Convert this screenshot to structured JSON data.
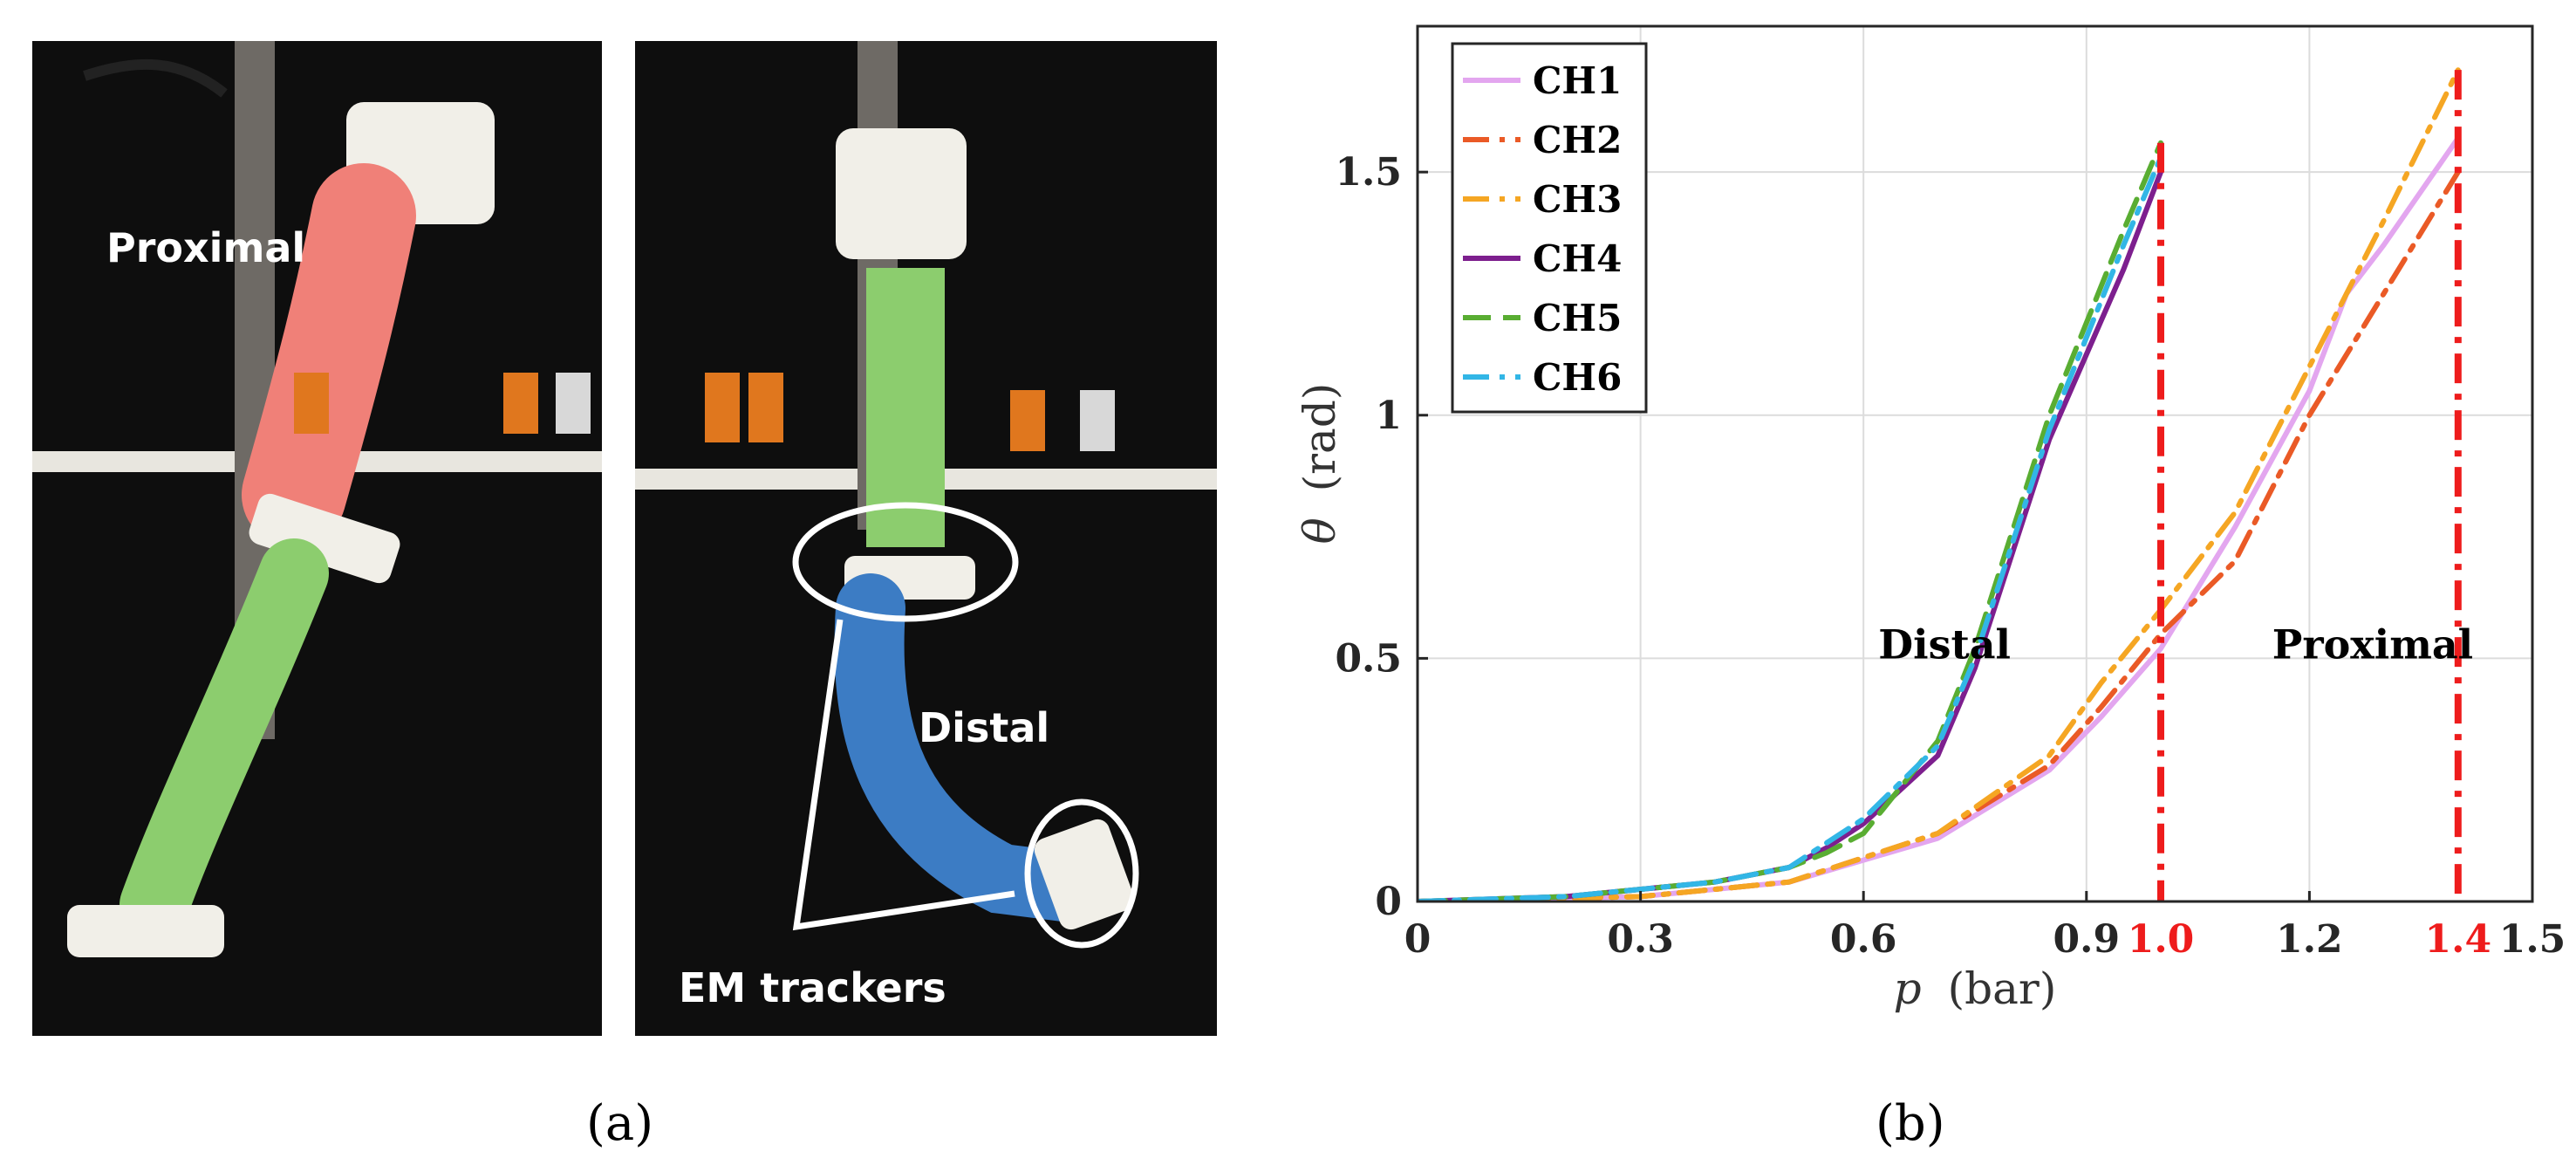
{
  "panel_a": {
    "label": "(a)",
    "left_photo": {
      "label_proximal": "Proximal"
    },
    "right_photo": {
      "label_distal": "Distal",
      "label_trackers": "EM trackers"
    }
  },
  "panel_b": {
    "label": "(b)"
  },
  "chart_data": {
    "type": "line",
    "xlabel_var": "p",
    "xlabel_unit": "(bar)",
    "ylabel_var": "θ",
    "ylabel_unit": "(rad)",
    "xlim": [
      0,
      1.5
    ],
    "ylim": [
      0,
      1.8
    ],
    "xticks": [
      "0",
      "0.3",
      "0.6",
      "0.9",
      "1.2",
      "1.5"
    ],
    "xticks_values": [
      0,
      0.3,
      0.6,
      0.9,
      1.2,
      1.5
    ],
    "yticks": [
      "0",
      "0.5",
      "1",
      "1.5"
    ],
    "yticks_values": [
      0,
      0.5,
      1,
      1.5
    ],
    "grid": true,
    "legend_position": "top-left",
    "annotations": [
      {
        "text": "Distal",
        "x": 0.62,
        "y": 0.5
      },
      {
        "text": "Proximal",
        "x": 1.15,
        "y": 0.5
      }
    ],
    "vlines": [
      {
        "x": 1.0,
        "label": "1.0",
        "color": "#ee1c1c",
        "y_top": 1.56
      },
      {
        "x": 1.4,
        "label": "1.4",
        "color": "#ee1c1c",
        "y_top": 1.71
      }
    ],
    "series": [
      {
        "name": "CH1",
        "color": "#e3a6ef",
        "dash": "solid",
        "x": [
          0,
          0.3,
          0.5,
          0.7,
          0.85,
          0.92,
          1.0,
          1.1,
          1.2,
          1.25,
          1.3,
          1.4
        ],
        "y": [
          0,
          0.01,
          0.04,
          0.13,
          0.27,
          0.38,
          0.52,
          0.77,
          1.05,
          1.25,
          1.35,
          1.57
        ]
      },
      {
        "name": "CH2",
        "color": "#ea5a26",
        "dash": "dashdot",
        "x": [
          0,
          0.3,
          0.5,
          0.7,
          0.85,
          0.92,
          1.0,
          1.1,
          1.2,
          1.3,
          1.4
        ],
        "y": [
          0,
          0.01,
          0.04,
          0.14,
          0.28,
          0.4,
          0.55,
          0.7,
          1.0,
          1.25,
          1.5
        ]
      },
      {
        "name": "CH3",
        "color": "#f5a623",
        "dash": "dashdot",
        "x": [
          0,
          0.3,
          0.5,
          0.7,
          0.85,
          0.92,
          1.0,
          1.1,
          1.2,
          1.3,
          1.4
        ],
        "y": [
          0,
          0.01,
          0.04,
          0.14,
          0.3,
          0.45,
          0.6,
          0.8,
          1.1,
          1.4,
          1.71
        ]
      },
      {
        "name": "CH4",
        "color": "#7d1f8e",
        "dash": "solid",
        "x": [
          0,
          0.2,
          0.4,
          0.5,
          0.55,
          0.6,
          0.7,
          0.75,
          0.85,
          0.95,
          1.0
        ],
        "y": [
          0,
          0.01,
          0.04,
          0.07,
          0.11,
          0.16,
          0.3,
          0.48,
          0.95,
          1.3,
          1.5
        ]
      },
      {
        "name": "CH5",
        "color": "#59ad32",
        "dash": "dash",
        "x": [
          0,
          0.2,
          0.4,
          0.5,
          0.55,
          0.6,
          0.7,
          0.75,
          0.85,
          0.95,
          1.0
        ],
        "y": [
          0,
          0.01,
          0.04,
          0.07,
          0.1,
          0.14,
          0.33,
          0.52,
          1.0,
          1.38,
          1.56
        ]
      },
      {
        "name": "CH6",
        "color": "#32b6e6",
        "dash": "dashdot",
        "x": [
          0,
          0.2,
          0.4,
          0.5,
          0.55,
          0.6,
          0.7,
          0.75,
          0.85,
          0.95,
          1.0
        ],
        "y": [
          0,
          0.01,
          0.04,
          0.07,
          0.12,
          0.17,
          0.32,
          0.5,
          0.97,
          1.35,
          1.53
        ]
      }
    ]
  }
}
